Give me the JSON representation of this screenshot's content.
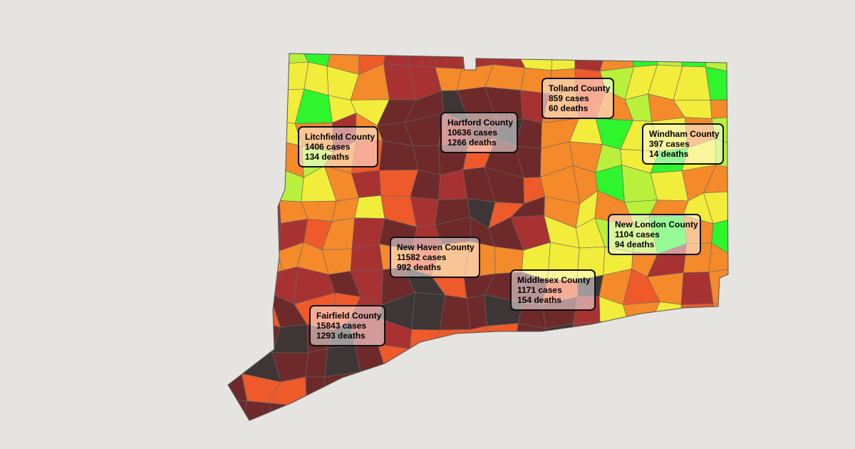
{
  "counties": [
    {
      "name": "Tolland County",
      "cases": "859 cases",
      "deaths": "60 deaths"
    },
    {
      "name": "Hartford County",
      "cases": "10636 cases",
      "deaths": "1266 deaths"
    },
    {
      "name": "Litchfield County",
      "cases": "1406 cases",
      "deaths": "134 deaths"
    },
    {
      "name": "Windham County",
      "cases": "397 cases",
      "deaths": "14 deaths"
    },
    {
      "name": "New London County",
      "cases": "1104 cases",
      "deaths": "94 deaths"
    },
    {
      "name": "New Haven County",
      "cases": "11582 cases",
      "deaths": "992 deaths"
    },
    {
      "name": "Middlesex County",
      "cases": "1171 cases",
      "deaths": "154 deaths"
    },
    {
      "name": "Fairfield County",
      "cases": "15843 cases",
      "deaths": "1293 deaths"
    }
  ]
}
